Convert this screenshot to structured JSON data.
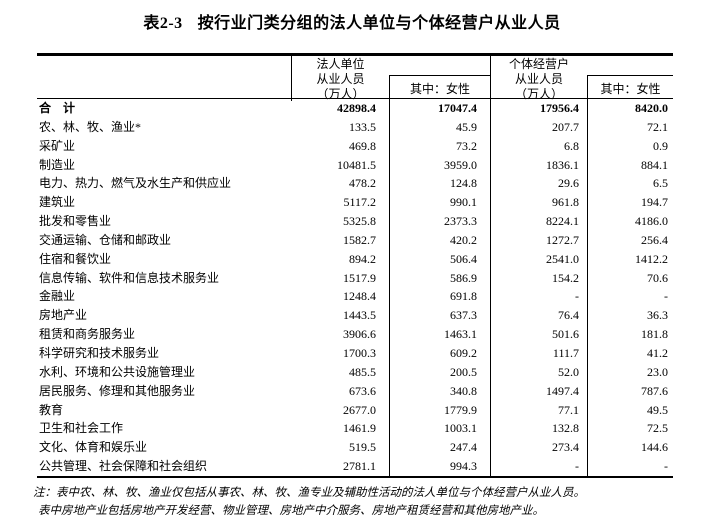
{
  "title": {
    "number": "表2-3",
    "text": "按行业门类分组的法人单位与个体经营户从业人员"
  },
  "table": {
    "col_headers": {
      "legal_units": [
        "法人单位",
        "从业人员",
        "（万人）"
      ],
      "legal_units_female": "其中：女性",
      "self_employed": [
        "个体经营户",
        "从业人员",
        "（万人）"
      ],
      "self_employed_female": "其中：女性"
    },
    "rows": [
      {
        "label": "合　计",
        "bold": true,
        "values": [
          "42898.4",
          "17047.4",
          "17956.4",
          "8420.0"
        ]
      },
      {
        "label": "农、林、牧、渔业*",
        "bold": false,
        "values": [
          "133.5",
          "45.9",
          "207.7",
          "72.1"
        ]
      },
      {
        "label": "采矿业",
        "bold": false,
        "values": [
          "469.8",
          "73.2",
          "6.8",
          "0.9"
        ]
      },
      {
        "label": "制造业",
        "bold": false,
        "values": [
          "10481.5",
          "3959.0",
          "1836.1",
          "884.1"
        ]
      },
      {
        "label": "电力、热力、燃气及水生产和供应业",
        "bold": false,
        "values": [
          "478.2",
          "124.8",
          "29.6",
          "6.5"
        ]
      },
      {
        "label": "建筑业",
        "bold": false,
        "values": [
          "5117.2",
          "990.1",
          "961.8",
          "194.7"
        ]
      },
      {
        "label": "批发和零售业",
        "bold": false,
        "values": [
          "5325.8",
          "2373.3",
          "8224.1",
          "4186.0"
        ]
      },
      {
        "label": "交通运输、仓储和邮政业",
        "bold": false,
        "values": [
          "1582.7",
          "420.2",
          "1272.7",
          "256.4"
        ]
      },
      {
        "label": "住宿和餐饮业",
        "bold": false,
        "values": [
          "894.2",
          "506.4",
          "2541.0",
          "1412.2"
        ]
      },
      {
        "label": "信息传输、软件和信息技术服务业",
        "bold": false,
        "values": [
          "1517.9",
          "586.9",
          "154.2",
          "70.6"
        ]
      },
      {
        "label": "金融业",
        "bold": false,
        "values": [
          "1248.4",
          "691.8",
          "-",
          "-"
        ]
      },
      {
        "label": "房地产业",
        "bold": false,
        "values": [
          "1443.5",
          "637.3",
          "76.4",
          "36.3"
        ]
      },
      {
        "label": "租赁和商务服务业",
        "bold": false,
        "values": [
          "3906.6",
          "1463.1",
          "501.6",
          "181.8"
        ]
      },
      {
        "label": "科学研究和技术服务业",
        "bold": false,
        "values": [
          "1700.3",
          "609.2",
          "111.7",
          "41.2"
        ]
      },
      {
        "label": "水利、环境和公共设施管理业",
        "bold": false,
        "values": [
          "485.5",
          "200.5",
          "52.0",
          "23.0"
        ]
      },
      {
        "label": "居民服务、修理和其他服务业",
        "bold": false,
        "values": [
          "673.6",
          "340.8",
          "1497.4",
          "787.6"
        ]
      },
      {
        "label": "教育",
        "bold": false,
        "values": [
          "2677.0",
          "1779.9",
          "77.1",
          "49.5"
        ]
      },
      {
        "label": "卫生和社会工作",
        "bold": false,
        "values": [
          "1461.9",
          "1003.1",
          "132.8",
          "72.5"
        ]
      },
      {
        "label": "文化、体育和娱乐业",
        "bold": false,
        "values": [
          "519.5",
          "247.4",
          "273.4",
          "144.6"
        ]
      },
      {
        "label": "公共管理、社会保障和社会组织",
        "bold": false,
        "values": [
          "2781.1",
          "994.3",
          "-",
          "-"
        ]
      }
    ]
  },
  "notes": [
    "注：表中农、林、牧、渔业仅包括从事农、林、牧、渔专业及辅助性活动的法人单位与个体经营户从业人员。",
    "表中房地产业包括房地产开发经营、物业管理、房地产中介服务、房地产租赁经营和其他房地产业。"
  ]
}
